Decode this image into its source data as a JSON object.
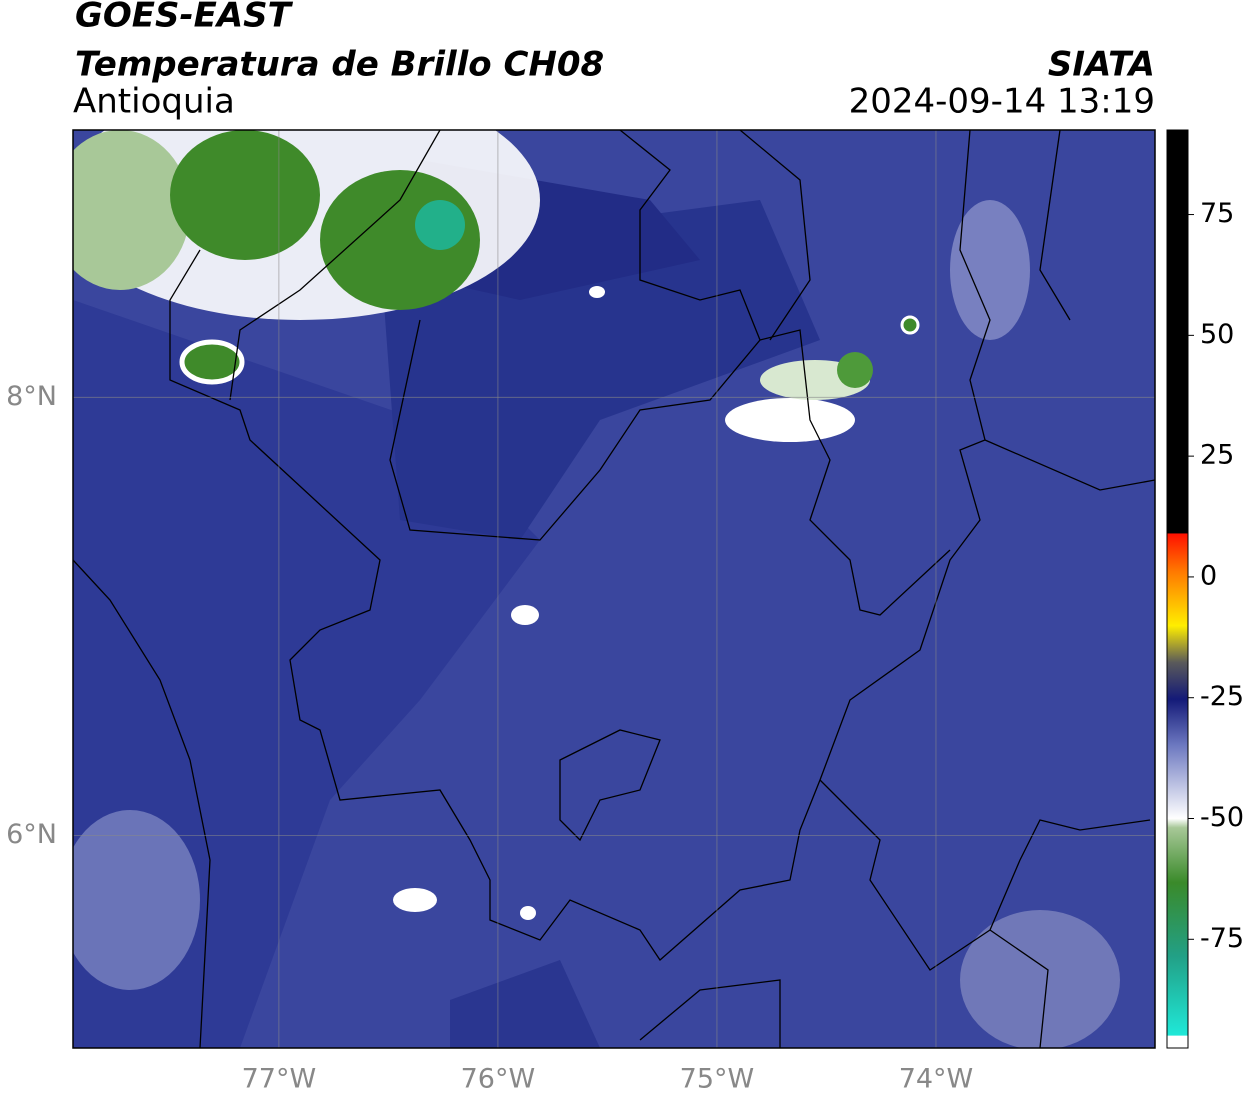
{
  "header": {
    "title": "GOES-EAST",
    "subtitle": "Temperatura de Brillo CH08",
    "region": "Antioquia",
    "source": "SIATA",
    "datetime": "2024-09-14 13:19"
  },
  "map": {
    "xlim": [
      -77.94,
      -73.0
    ],
    "ylim": [
      5.03,
      9.22
    ],
    "xticks": [
      {
        "value": -77,
        "label": "77°W"
      },
      {
        "value": -76,
        "label": "76°W"
      },
      {
        "value": -75,
        "label": "75°W"
      },
      {
        "value": -74,
        "label": "74°W"
      }
    ],
    "yticks": [
      {
        "value": 8,
        "label": "8°N"
      },
      {
        "value": 6,
        "label": "6°N"
      }
    ],
    "grid": true
  },
  "colorbar": {
    "lim": [
      -97.5,
      92.5
    ],
    "ticks": [
      75,
      50,
      25,
      0,
      -25,
      -50,
      -75
    ]
  }
}
